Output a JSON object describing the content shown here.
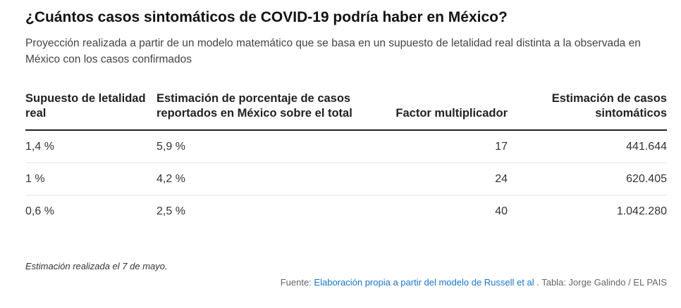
{
  "title": "¿Cuántos casos sintomáticos de COVID-19 podría haber en México?",
  "subtitle": "Proyección realizada a partir de un modelo matemático que se basa en un supuesto de letalidad real distinta a la observada en México con los casos confirmados",
  "table": {
    "headers": [
      "Supuesto de letalidad real",
      "Estimación de porcentaje de casos reportados en México sobre el total",
      "Factor multiplicador",
      "Estimación de casos sintomáticos"
    ],
    "rows": [
      [
        "1,4 %",
        "5,9 %",
        "17",
        "441.644"
      ],
      [
        "1 %",
        "4,2 %",
        "24",
        "620.405"
      ],
      [
        "0,6 %",
        "2,5 %",
        "40",
        "1.042.280"
      ]
    ]
  },
  "note": "Estimación realizada el 7 de mayo.",
  "source": {
    "prefix": "Fuente:",
    "link_text": "Elaboración propia a partir del modelo de Russell et al",
    "suffix": ". Tabla: Jorge Galindo / EL PAIS"
  },
  "colors": {
    "link": "#1a73c7",
    "rule": "#222222"
  }
}
